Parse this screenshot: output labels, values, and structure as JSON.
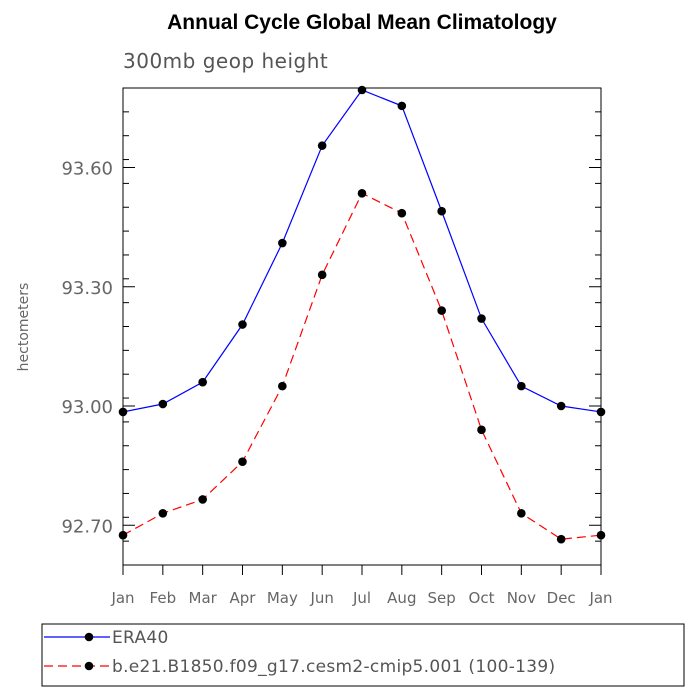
{
  "chart_data": {
    "type": "line",
    "title": "Annual Cycle Global Mean Climatology",
    "subtitle": "300mb geop height",
    "xlabel": "",
    "ylabel": "hectometers",
    "categories": [
      "Jan",
      "Feb",
      "Mar",
      "Apr",
      "May",
      "Jun",
      "Jul",
      "Aug",
      "Sep",
      "Oct",
      "Nov",
      "Dec",
      "Jan"
    ],
    "ylim": [
      92.6,
      93.8
    ],
    "yticks": [
      92.7,
      93.0,
      93.3,
      93.6
    ],
    "ytick_labels": [
      "92.70",
      "93.00",
      "93.30",
      "93.60"
    ],
    "grid": false,
    "legend_position": "bottom",
    "series": [
      {
        "name": "ERA40",
        "color": "#0000ff",
        "line_style": "solid",
        "marker": "filled-circle",
        "values": [
          92.985,
          93.005,
          93.06,
          93.205,
          93.41,
          93.655,
          93.795,
          93.755,
          93.49,
          93.22,
          93.05,
          93.0,
          92.985
        ]
      },
      {
        "name": "b.e21.B1850.f09_g17.cesm2-cmip5.001 (100-139)",
        "color": "#ff0000",
        "line_style": "dashed",
        "marker": "filled-circle",
        "values": [
          92.675,
          92.73,
          92.765,
          92.86,
          93.05,
          93.33,
          93.535,
          93.485,
          93.24,
          92.94,
          92.73,
          92.665,
          92.675
        ]
      }
    ]
  }
}
